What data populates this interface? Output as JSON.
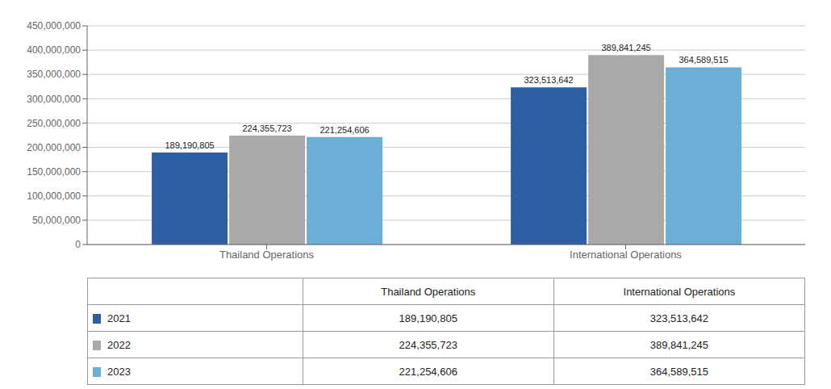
{
  "chart_data": {
    "type": "bar",
    "categories": [
      "Thailand Operations",
      "International Operations"
    ],
    "series": [
      {
        "name": "2021",
        "color": "#2E5FA3",
        "values": [
          189190805,
          323513642
        ],
        "value_labels": [
          "189,190,805",
          "323,513,642"
        ]
      },
      {
        "name": "2022",
        "color": "#A9A9A9",
        "values": [
          224355723,
          389841245
        ],
        "value_labels": [
          "224,355,723",
          "389,841,245"
        ]
      },
      {
        "name": "2023",
        "color": "#6BAED6",
        "values": [
          221254606,
          364589515
        ],
        "value_labels": [
          "221,254,606",
          "364,589,515"
        ]
      }
    ],
    "ylim": [
      0,
      450000000
    ],
    "yticks": [
      0,
      {
        "value": 50000000,
        "label": "50,000,000"
      },
      {
        "value": 100000000,
        "label": "100,000,000"
      },
      {
        "value": 150000000,
        "label": "150,000,000"
      },
      {
        "value": 200000000,
        "label": "200,000,000"
      },
      {
        "value": 250000000,
        "label": "250,000,000"
      },
      {
        "value": 300000000,
        "label": "300,000,000"
      },
      {
        "value": 350000000,
        "label": "350,000,000"
      },
      {
        "value": 400000000,
        "label": "400,000,000"
      },
      {
        "value": 450000000,
        "label": "450,000,000"
      }
    ],
    "grid": true,
    "data_labels": true,
    "legend": "bottom"
  }
}
